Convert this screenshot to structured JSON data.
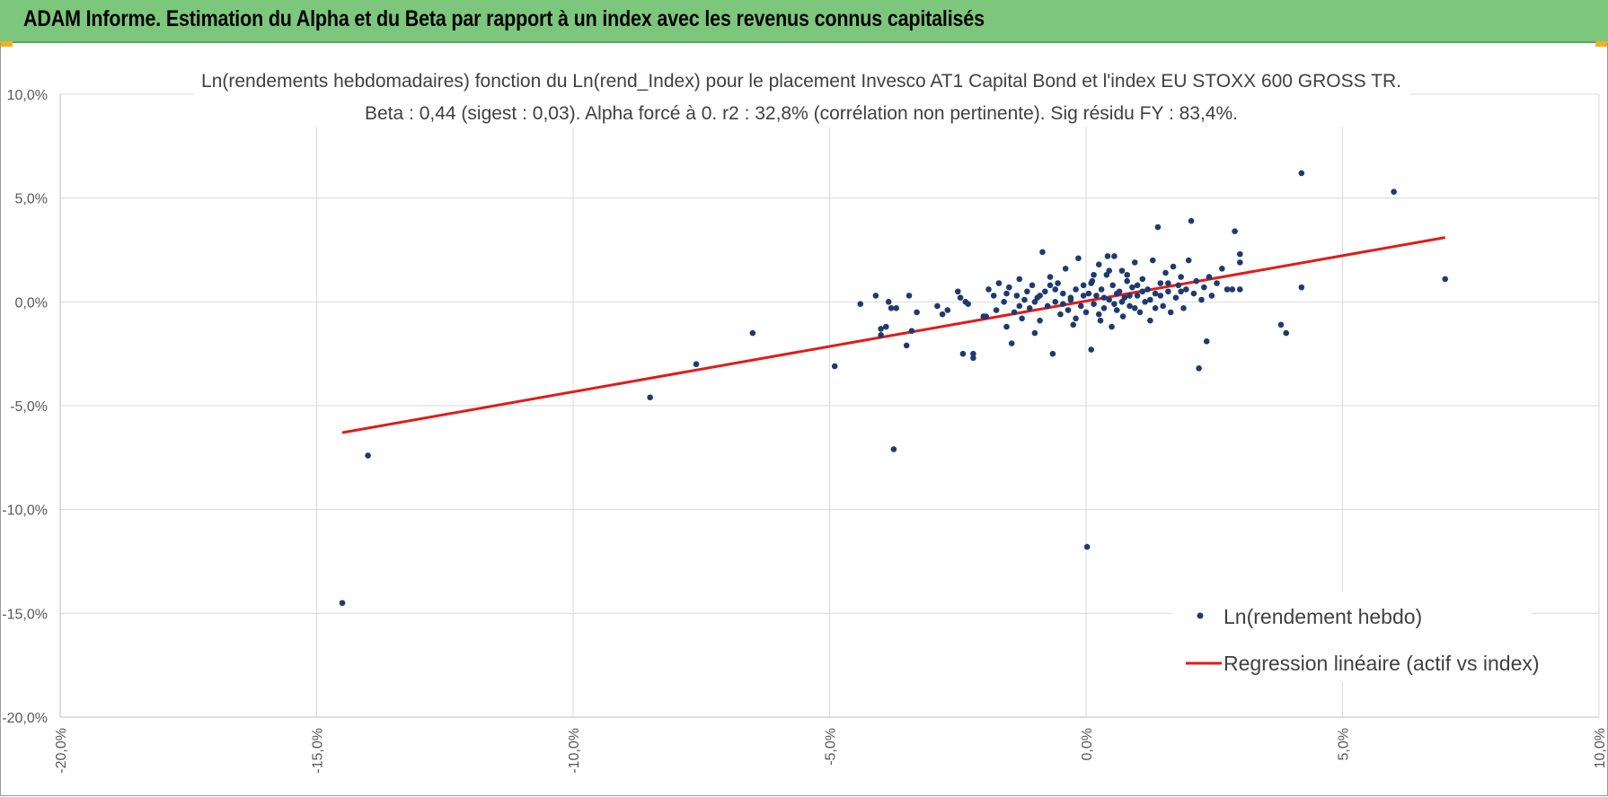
{
  "header": {
    "title": "ADAM Informe. Estimation du Alpha et du Beta par rapport à un index avec les revenus connus capitalisés"
  },
  "colors": {
    "banner": "#7dc77d",
    "points": "#1f3a6e",
    "regression": "#e31a1a",
    "grid": "#d9d9d9"
  },
  "chart_data": {
    "type": "scatter",
    "title": "Ln(rendements hebdomadaires) fonction du Ln(rend_Index) pour le placement Invesco AT1 Capital Bond  et l'index EU STOXX 600 GROSS TR.",
    "subtitle": "Beta : 0,44 (sigest : 0,03).  Alpha forcé à 0. r2 : 32,8% (corrélation non pertinente). Sig résidu FY : 83,4%.",
    "xlabel": "",
    "ylabel": "",
    "xlim": [
      -20,
      10
    ],
    "ylim": [
      -20,
      10
    ],
    "x_ticks": [
      "-20,0%",
      "-15,0%",
      "-10,0%",
      "-5,0%",
      "0,0%",
      "5,0%",
      "10,0%"
    ],
    "y_ticks": [
      "10,0%",
      "5,0%",
      "0,0%",
      "-5,0%",
      "-10,0%",
      "-15,0%",
      "-20,0%"
    ],
    "grid": true,
    "legend_position": "bottom-right",
    "series": [
      {
        "name": "Ln(rendement hebdo)",
        "type": "scatter",
        "points": [
          [
            -14.5,
            -14.5
          ],
          [
            -14.0,
            -7.4
          ],
          [
            -8.5,
            -4.6
          ],
          [
            -7.6,
            -3.0
          ],
          [
            -6.5,
            -1.5
          ],
          [
            -4.9,
            -3.1
          ],
          [
            -4.4,
            -0.1
          ],
          [
            -4.1,
            0.3
          ],
          [
            -4.0,
            -1.3
          ],
          [
            -4.0,
            -1.6
          ],
          [
            -3.9,
            -1.2
          ],
          [
            -3.85,
            0.0
          ],
          [
            -3.8,
            -0.3
          ],
          [
            -3.75,
            -7.1
          ],
          [
            -3.7,
            -0.3
          ],
          [
            -3.5,
            -2.1
          ],
          [
            -3.45,
            0.3
          ],
          [
            -3.4,
            -1.4
          ],
          [
            -3.3,
            -0.5
          ],
          [
            -2.9,
            -0.2
          ],
          [
            -2.8,
            -0.6
          ],
          [
            -2.7,
            -0.4
          ],
          [
            -2.5,
            0.5
          ],
          [
            -2.45,
            0.2
          ],
          [
            -2.4,
            -2.5
          ],
          [
            -2.35,
            0.0
          ],
          [
            -2.3,
            -0.1
          ],
          [
            -2.2,
            -2.5
          ],
          [
            -2.2,
            -2.7
          ],
          [
            -2.0,
            -0.7
          ],
          [
            -1.95,
            -0.7
          ],
          [
            -1.9,
            0.6
          ],
          [
            -1.8,
            0.3
          ],
          [
            -1.75,
            -0.4
          ],
          [
            -1.7,
            0.9
          ],
          [
            -1.6,
            0.0
          ],
          [
            -1.55,
            -1.2
          ],
          [
            -1.5,
            0.7
          ],
          [
            -1.45,
            -2.0
          ],
          [
            -1.4,
            -0.5
          ],
          [
            -1.35,
            0.3
          ],
          [
            -1.3,
            1.1
          ],
          [
            -1.25,
            -0.8
          ],
          [
            -1.2,
            0.1
          ],
          [
            -1.15,
            0.5
          ],
          [
            -1.1,
            -0.3
          ],
          [
            -1.05,
            0.8
          ],
          [
            -1.0,
            -1.5
          ],
          [
            -0.95,
            0.2
          ],
          [
            -0.9,
            -0.9
          ],
          [
            -0.85,
            2.4
          ],
          [
            -0.8,
            0.5
          ],
          [
            -0.75,
            -0.2
          ],
          [
            -0.7,
            1.2
          ],
          [
            -0.65,
            -2.5
          ],
          [
            -0.6,
            0.0
          ],
          [
            -0.55,
            0.9
          ],
          [
            -0.5,
            -0.6
          ],
          [
            -0.45,
            0.4
          ],
          [
            -0.4,
            1.6
          ],
          [
            -0.35,
            -0.4
          ],
          [
            -0.3,
            0.2
          ],
          [
            -0.25,
            -1.1
          ],
          [
            -0.2,
            0.6
          ],
          [
            -0.15,
            2.1
          ],
          [
            -0.1,
            -0.2
          ],
          [
            -0.05,
            0.8
          ],
          [
            0.0,
            -0.5
          ],
          [
            0.02,
            -11.8
          ],
          [
            0.05,
            0.4
          ],
          [
            0.1,
            -2.3
          ],
          [
            0.12,
            1.0
          ],
          [
            0.15,
            -0.1
          ],
          [
            0.2,
            0.3
          ],
          [
            0.25,
            1.8
          ],
          [
            0.28,
            -0.9
          ],
          [
            0.3,
            0.6
          ],
          [
            0.35,
            -0.3
          ],
          [
            0.4,
            1.3
          ],
          [
            0.42,
            2.2
          ],
          [
            0.45,
            0.1
          ],
          [
            0.5,
            -1.2
          ],
          [
            0.52,
            0.8
          ],
          [
            0.55,
            2.2
          ],
          [
            0.6,
            -0.4
          ],
          [
            0.65,
            0.5
          ],
          [
            0.7,
            1.5
          ],
          [
            0.72,
            -0.7
          ],
          [
            0.75,
            0.2
          ],
          [
            0.8,
            1.0
          ],
          [
            0.85,
            -0.2
          ],
          [
            0.9,
            0.7
          ],
          [
            0.95,
            1.9
          ],
          [
            1.0,
            0.3
          ],
          [
            1.05,
            -0.5
          ],
          [
            1.1,
            1.1
          ],
          [
            1.15,
            0.0
          ],
          [
            1.2,
            0.6
          ],
          [
            1.25,
            -0.9
          ],
          [
            1.3,
            2.0
          ],
          [
            1.35,
            0.4
          ],
          [
            1.4,
            3.6
          ],
          [
            1.45,
            0.9
          ],
          [
            1.5,
            -0.2
          ],
          [
            1.55,
            1.4
          ],
          [
            1.6,
            0.5
          ],
          [
            1.65,
            -0.5
          ],
          [
            1.7,
            1.7
          ],
          [
            1.75,
            0.2
          ],
          [
            1.8,
            0.8
          ],
          [
            1.85,
            1.2
          ],
          [
            1.9,
            -0.3
          ],
          [
            1.95,
            0.6
          ],
          [
            2.0,
            2.0
          ],
          [
            2.05,
            3.9
          ],
          [
            2.1,
            0.4
          ],
          [
            2.15,
            1.0
          ],
          [
            2.2,
            -3.2
          ],
          [
            2.25,
            0.1
          ],
          [
            2.3,
            0.7
          ],
          [
            2.35,
            -1.9
          ],
          [
            2.4,
            1.2
          ],
          [
            2.45,
            0.3
          ],
          [
            2.55,
            0.9
          ],
          [
            2.65,
            1.6
          ],
          [
            2.75,
            0.6
          ],
          [
            2.85,
            0.6
          ],
          [
            2.9,
            3.4
          ],
          [
            3.0,
            2.3
          ],
          [
            3.0,
            1.9
          ],
          [
            3.0,
            0.6
          ],
          [
            3.8,
            -1.1
          ],
          [
            3.9,
            -1.5
          ],
          [
            4.2,
            6.2
          ],
          [
            4.2,
            0.7
          ],
          [
            6.0,
            5.3
          ],
          [
            7.0,
            1.1
          ],
          [
            -0.9,
            0.3
          ],
          [
            -0.6,
            0.6
          ],
          [
            -0.3,
            0.1
          ],
          [
            0.1,
            0.9
          ],
          [
            0.35,
            0.2
          ],
          [
            0.6,
            0.4
          ],
          [
            0.85,
            0.3
          ],
          [
            1.1,
            0.5
          ],
          [
            -1.0,
            0.0
          ],
          [
            -0.45,
            -0.1
          ],
          [
            0.25,
            -0.6
          ],
          [
            0.7,
            0.0
          ],
          [
            1.25,
            0.1
          ],
          [
            1.6,
            0.9
          ],
          [
            -1.3,
            -0.2
          ],
          [
            -0.2,
            -0.8
          ],
          [
            0.45,
            1.5
          ],
          [
            1.0,
            0.8
          ],
          [
            1.45,
            0.3
          ],
          [
            -0.7,
            0.8
          ],
          [
            0.15,
            1.3
          ],
          [
            0.55,
            -0.1
          ],
          [
            0.95,
            -0.3
          ],
          [
            -1.55,
            0.4
          ],
          [
            -0.05,
            0.3
          ],
          [
            0.8,
            1.3
          ],
          [
            1.35,
            -0.3
          ],
          [
            1.85,
            0.5
          ]
        ]
      },
      {
        "name": "Regression linéaire (actif vs index)",
        "type": "line",
        "points": [
          [
            -14.5,
            -6.3
          ],
          [
            7.0,
            3.1
          ]
        ]
      }
    ]
  }
}
